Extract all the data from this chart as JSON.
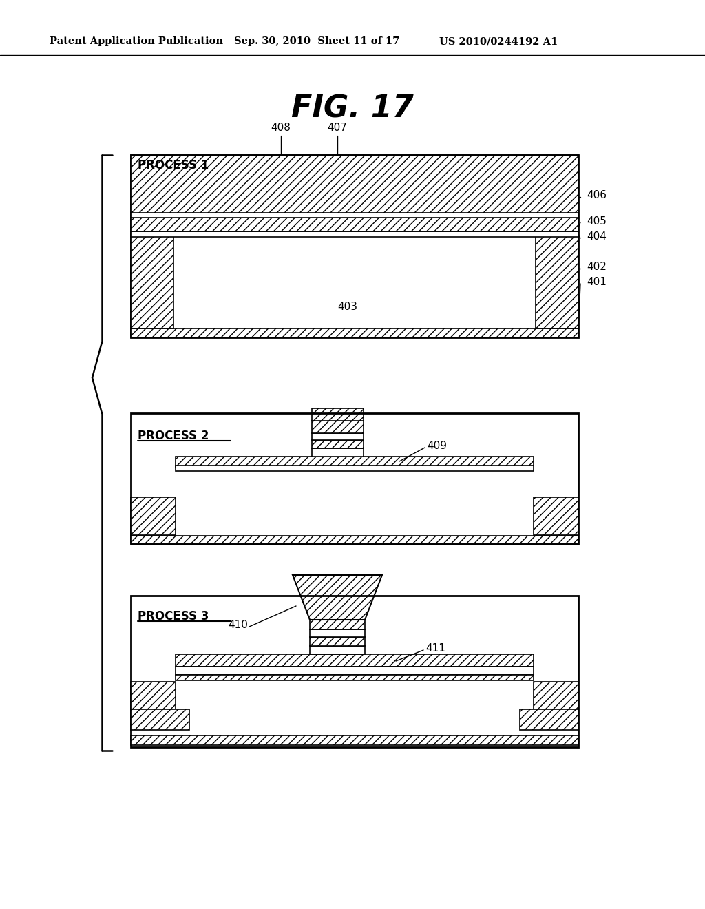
{
  "title": "FIG. 17",
  "header_left": "Patent Application Publication",
  "header_mid": "Sep. 30, 2010  Sheet 11 of 17",
  "header_right": "US 2010/0244192 A1",
  "background_color": "#ffffff"
}
